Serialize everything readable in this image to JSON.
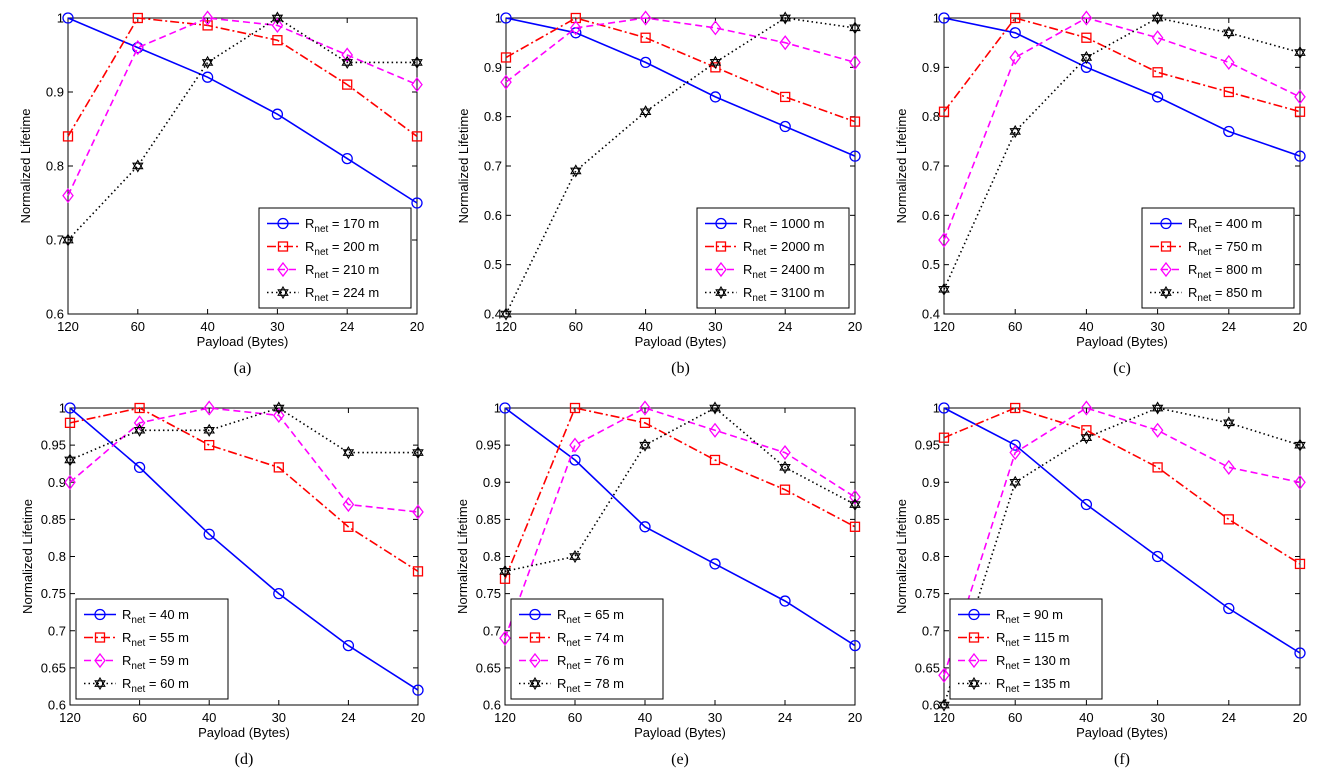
{
  "chart_data": [
    {
      "panel": "(a)",
      "type": "line",
      "xlabel": "Payload (Bytes)",
      "ylabel": "Normalized Lifetime",
      "categories": [
        "120",
        "60",
        "40",
        "30",
        "24",
        "20"
      ],
      "ylim": [
        0.6,
        1.0
      ],
      "yticks": [
        "0.6",
        "0.7",
        "0.8",
        "0.9",
        "1"
      ],
      "ytick_values": [
        0.6,
        0.7,
        0.8,
        0.9,
        1.0
      ],
      "legend": {
        "placement": "bottom-right"
      },
      "series": [
        {
          "name": "R",
          "sub": "net",
          "suffix": " = 170 m",
          "values": [
            1.0,
            0.96,
            0.92,
            0.87,
            0.81,
            0.75
          ],
          "color": "#0000ff",
          "dash": "solid",
          "marker": "circle"
        },
        {
          "name": "R",
          "sub": "net",
          "suffix": " = 200 m",
          "values": [
            0.84,
            1.0,
            0.99,
            0.97,
            0.91,
            0.84
          ],
          "color": "#ff0000",
          "dash": "dashdot",
          "marker": "square"
        },
        {
          "name": "R",
          "sub": "net",
          "suffix": " = 210 m",
          "values": [
            0.76,
            0.96,
            1.0,
            0.99,
            0.95,
            0.91
          ],
          "color": "#ff00ff",
          "dash": "dashed",
          "marker": "diamond"
        },
        {
          "name": "R",
          "sub": "net",
          "suffix": " = 224 m",
          "values": [
            0.7,
            0.8,
            0.94,
            1.0,
            0.94,
            0.94
          ],
          "color": "#000000",
          "dash": "dotted",
          "marker": "hexagram"
        }
      ]
    },
    {
      "panel": "(b)",
      "type": "line",
      "xlabel": "Payload (Bytes)",
      "ylabel": "Normalized Lifetime",
      "categories": [
        "120",
        "60",
        "40",
        "30",
        "24",
        "20"
      ],
      "ylim": [
        0.4,
        1.0
      ],
      "yticks": [
        "0.4",
        "0.5",
        "0.6",
        "0.7",
        "0.8",
        "0.9",
        "1"
      ],
      "ytick_values": [
        0.4,
        0.5,
        0.6,
        0.7,
        0.8,
        0.9,
        1.0
      ],
      "legend": {
        "placement": "bottom-right"
      },
      "series": [
        {
          "name": "R",
          "sub": "net",
          "suffix": " = 1000 m",
          "values": [
            1.0,
            0.97,
            0.91,
            0.84,
            0.78,
            0.72
          ],
          "color": "#0000ff",
          "dash": "solid",
          "marker": "circle"
        },
        {
          "name": "R",
          "sub": "net",
          "suffix": " = 2000 m",
          "values": [
            0.92,
            1.0,
            0.96,
            0.9,
            0.84,
            0.79
          ],
          "color": "#ff0000",
          "dash": "dashdot",
          "marker": "square"
        },
        {
          "name": "R",
          "sub": "net",
          "suffix": " = 2400 m",
          "values": [
            0.87,
            0.98,
            1.0,
            0.98,
            0.95,
            0.91
          ],
          "color": "#ff00ff",
          "dash": "dashed",
          "marker": "diamond"
        },
        {
          "name": "R",
          "sub": "net",
          "suffix": " = 3100 m",
          "values": [
            0.4,
            0.69,
            0.81,
            0.91,
            1.0,
            0.98
          ],
          "color": "#000000",
          "dash": "dotted",
          "marker": "hexagram"
        }
      ]
    },
    {
      "panel": "(c)",
      "type": "line",
      "xlabel": "Payload (Bytes)",
      "ylabel": "Normalized Lifetime",
      "categories": [
        "120",
        "60",
        "40",
        "30",
        "24",
        "20"
      ],
      "ylim": [
        0.4,
        1.0
      ],
      "yticks": [
        "0.4",
        "0.5",
        "0.6",
        "0.7",
        "0.8",
        "0.9",
        "1"
      ],
      "ytick_values": [
        0.4,
        0.5,
        0.6,
        0.7,
        0.8,
        0.9,
        1.0
      ],
      "legend": {
        "placement": "bottom-right"
      },
      "series": [
        {
          "name": "R",
          "sub": "net",
          "suffix": " = 400 m",
          "values": [
            1.0,
            0.97,
            0.9,
            0.84,
            0.77,
            0.72
          ],
          "color": "#0000ff",
          "dash": "solid",
          "marker": "circle"
        },
        {
          "name": "R",
          "sub": "net",
          "suffix": " = 750 m",
          "values": [
            0.81,
            1.0,
            0.96,
            0.89,
            0.85,
            0.81
          ],
          "color": "#ff0000",
          "dash": "dashdot",
          "marker": "square"
        },
        {
          "name": "R",
          "sub": "net",
          "suffix": " = 800 m",
          "values": [
            0.55,
            0.92,
            1.0,
            0.96,
            0.91,
            0.84
          ],
          "color": "#ff00ff",
          "dash": "dashed",
          "marker": "diamond"
        },
        {
          "name": "R",
          "sub": "net",
          "suffix": " = 850 m",
          "values": [
            0.45,
            0.77,
            0.92,
            1.0,
            0.97,
            0.93
          ],
          "color": "#000000",
          "dash": "dotted",
          "marker": "hexagram"
        }
      ]
    },
    {
      "panel": "(d)",
      "type": "line",
      "xlabel": "Payload (Bytes)",
      "ylabel": "Normalized Lifetime",
      "categories": [
        "120",
        "60",
        "40",
        "30",
        "24",
        "20"
      ],
      "ylim": [
        0.6,
        1.0
      ],
      "yticks": [
        "0.6",
        "0.65",
        "0.7",
        "0.75",
        "0.8",
        "0.85",
        "0.9",
        "0.95",
        "1"
      ],
      "ytick_values": [
        0.6,
        0.65,
        0.7,
        0.75,
        0.8,
        0.85,
        0.9,
        0.95,
        1.0
      ],
      "legend": {
        "placement": "bottom-left"
      },
      "series": [
        {
          "name": "R",
          "sub": "net",
          "suffix": " = 40 m",
          "values": [
            1.0,
            0.92,
            0.83,
            0.75,
            0.68,
            0.62
          ],
          "color": "#0000ff",
          "dash": "solid",
          "marker": "circle"
        },
        {
          "name": "R",
          "sub": "net",
          "suffix": " = 55 m",
          "values": [
            0.98,
            1.0,
            0.95,
            0.92,
            0.84,
            0.78
          ],
          "color": "#ff0000",
          "dash": "dashdot",
          "marker": "square"
        },
        {
          "name": "R",
          "sub": "net",
          "suffix": " = 59 m",
          "values": [
            0.9,
            0.98,
            1.0,
            0.99,
            0.87,
            0.86
          ],
          "color": "#ff00ff",
          "dash": "dashed",
          "marker": "diamond"
        },
        {
          "name": "R",
          "sub": "net",
          "suffix": " = 60 m",
          "values": [
            0.93,
            0.97,
            0.97,
            1.0,
            0.94,
            0.94
          ],
          "color": "#000000",
          "dash": "dotted",
          "marker": "hexagram"
        }
      ]
    },
    {
      "panel": "(e)",
      "type": "line",
      "xlabel": "Payload (Bytes)",
      "ylabel": "Normalized Lifetime",
      "categories": [
        "120",
        "60",
        "40",
        "30",
        "24",
        "20"
      ],
      "ylim": [
        0.6,
        1.0
      ],
      "yticks": [
        "0.6",
        "0.65",
        "0.7",
        "0.75",
        "0.8",
        "0.85",
        "0.9",
        "0.95",
        "1"
      ],
      "ytick_values": [
        0.6,
        0.65,
        0.7,
        0.75,
        0.8,
        0.85,
        0.9,
        0.95,
        1.0
      ],
      "legend": {
        "placement": "bottom-left"
      },
      "series": [
        {
          "name": "R",
          "sub": "net",
          "suffix": " = 65 m",
          "values": [
            1.0,
            0.93,
            0.84,
            0.79,
            0.74,
            0.68
          ],
          "color": "#0000ff",
          "dash": "solid",
          "marker": "circle"
        },
        {
          "name": "R",
          "sub": "net",
          "suffix": " = 74 m",
          "values": [
            0.77,
            1.0,
            0.98,
            0.93,
            0.89,
            0.84
          ],
          "color": "#ff0000",
          "dash": "dashdot",
          "marker": "square"
        },
        {
          "name": "R",
          "sub": "net",
          "suffix": " = 76 m",
          "values": [
            0.69,
            0.95,
            1.0,
            0.97,
            0.94,
            0.88
          ],
          "color": "#ff00ff",
          "dash": "dashed",
          "marker": "diamond"
        },
        {
          "name": "R",
          "sub": "net",
          "suffix": " = 78 m",
          "values": [
            0.78,
            0.8,
            0.95,
            1.0,
            0.92,
            0.87
          ],
          "color": "#000000",
          "dash": "dotted",
          "marker": "hexagram"
        }
      ]
    },
    {
      "panel": "(f)",
      "type": "line",
      "xlabel": "Payload (Bytes)",
      "ylabel": "Normalized Lifetime",
      "categories": [
        "120",
        "60",
        "40",
        "30",
        "24",
        "20"
      ],
      "ylim": [
        0.6,
        1.0
      ],
      "yticks": [
        "0.6",
        "0.65",
        "0.7",
        "0.75",
        "0.8",
        "0.85",
        "0.9",
        "0.95",
        "1"
      ],
      "ytick_values": [
        0.6,
        0.65,
        0.7,
        0.75,
        0.8,
        0.85,
        0.9,
        0.95,
        1.0
      ],
      "legend": {
        "placement": "bottom-left"
      },
      "series": [
        {
          "name": "R",
          "sub": "net",
          "suffix": " = 90 m",
          "values": [
            1.0,
            0.95,
            0.87,
            0.8,
            0.73,
            0.67
          ],
          "color": "#0000ff",
          "dash": "solid",
          "marker": "circle"
        },
        {
          "name": "R",
          "sub": "net",
          "suffix": " = 115 m",
          "values": [
            0.96,
            1.0,
            0.97,
            0.92,
            0.85,
            0.79
          ],
          "color": "#ff0000",
          "dash": "dashdot",
          "marker": "square"
        },
        {
          "name": "R",
          "sub": "net",
          "suffix": " = 130 m",
          "values": [
            0.64,
            0.94,
            1.0,
            0.97,
            0.92,
            0.9
          ],
          "color": "#ff00ff",
          "dash": "dashed",
          "marker": "diamond"
        },
        {
          "name": "R",
          "sub": "net",
          "suffix": " = 135 m",
          "values": [
            0.6,
            0.9,
            0.96,
            1.0,
            0.98,
            0.95
          ],
          "color": "#000000",
          "dash": "dotted",
          "marker": "hexagram"
        }
      ]
    }
  ]
}
